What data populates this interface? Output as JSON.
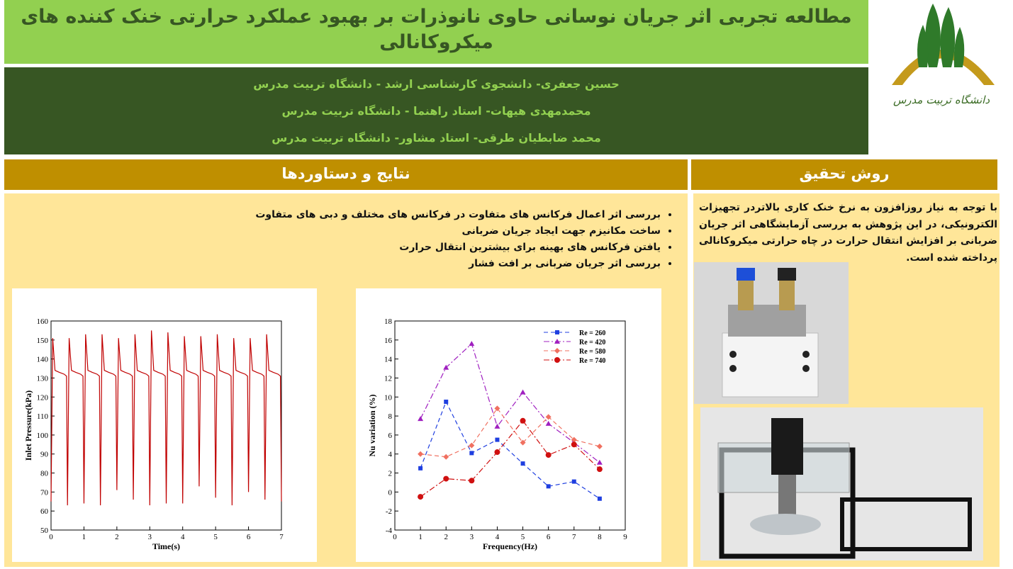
{
  "header": {
    "title": "مطالعه تجربی اثر جریان نوسانی حاوی نانوذرات بر بهبود عملکرد حرارتی خنک کننده های میکروکانالی",
    "authors": [
      "حسین جعفری- دانشجوی کارشناسی ارشد - دانشگاه تربیت مدرس",
      "محمدمهدی هیهات- استاد راهنما - دانشگاه تربیت مدرس",
      "محمد ضابطیان طرقی- استاد مشاور- دانشگاه تربیت مدرس"
    ]
  },
  "logo": {
    "text": "دانشگاه تربیت مدرس"
  },
  "sections": {
    "results": {
      "heading": "نتایج و دستاوردها",
      "bullets": [
        "بررسی اثر اعمال فرکانس های متفاوت در فرکانس های مختلف و دبی های متفاوت",
        "ساخت مکانیزم جهت ایجاد جریان ضربانی",
        "یافتن فرکانس های بهینه برای بیشترین انتقال حرارت",
        "بررسی اثر جریان ضربانی بر افت فشار"
      ]
    },
    "method": {
      "heading": "روش تحقیق",
      "text": "با توجه به نیاز روزافزون به نرخ خنک کاری بالاتردر تجهیزات الکترونیکی، در این پژوهش به بررسی آزمایشگاهی اثر جریان ضربانی بر افزایش انتقال حرارت در چاه حرارتی میکروکانالی پرداخته شده است."
    }
  },
  "chart_data": [
    {
      "type": "line",
      "x_label": "Time(s)",
      "y_label": "Inlet Pressure(kPa)",
      "color": "#c00000",
      "x": [
        0,
        0.05,
        0.12,
        0.25,
        0.4,
        0.47,
        0.5,
        0.55,
        0.62,
        0.75,
        0.9,
        0.97,
        1,
        1.05,
        1.12,
        1.25,
        1.4,
        1.47,
        1.5,
        1.55,
        1.62,
        1.75,
        1.9,
        1.97,
        2,
        2.05,
        2.12,
        2.25,
        2.4,
        2.47,
        2.5,
        2.55,
        2.62,
        2.75,
        2.9,
        2.97,
        3,
        3.05,
        3.12,
        3.25,
        3.4,
        3.47,
        3.5,
        3.55,
        3.62,
        3.75,
        3.9,
        3.97,
        4,
        4.05,
        4.12,
        4.25,
        4.4,
        4.47,
        4.5,
        4.55,
        4.62,
        4.75,
        4.9,
        4.97,
        5,
        5.05,
        5.12,
        5.25,
        5.4,
        5.47,
        5.5,
        5.55,
        5.62,
        5.75,
        5.9,
        5.97,
        6,
        6.05,
        6.12,
        6.25,
        6.4,
        6.47,
        6.5,
        6.55,
        6.62,
        6.75,
        6.9,
        6.97,
        7
      ],
      "values": [
        65,
        151,
        134,
        133,
        132,
        131,
        63,
        151,
        134,
        133,
        132,
        131,
        64,
        153,
        134,
        133,
        132,
        131,
        63,
        153,
        134,
        133,
        132,
        131,
        71,
        151,
        134,
        133,
        132,
        131,
        66,
        153,
        134,
        133,
        132,
        131,
        63,
        155,
        134,
        133,
        132,
        131,
        64,
        154,
        134,
        133,
        132,
        131,
        64,
        152,
        134,
        133,
        132,
        131,
        73,
        152,
        134,
        133,
        132,
        131,
        67,
        153,
        134,
        133,
        132,
        131,
        63,
        151,
        134,
        133,
        132,
        131,
        70,
        151,
        134,
        133,
        132,
        131,
        66,
        153,
        134,
        133,
        132,
        131,
        65
      ],
      "xlim": [
        0,
        7
      ],
      "ylim": [
        50,
        160
      ],
      "xticks": [
        0,
        1,
        2,
        3,
        4,
        5,
        6,
        7
      ],
      "yticks": [
        50,
        60,
        70,
        80,
        90,
        100,
        110,
        120,
        130,
        140,
        150,
        160
      ]
    },
    {
      "type": "line",
      "x_label": "Frequency(Hz)",
      "y_label": "Nu variation (%)",
      "legend": "upper right",
      "x": [
        1,
        2,
        3,
        4,
        5,
        6,
        7,
        8
      ],
      "series": [
        {
          "name": "Re = 260",
          "color": "#1f3fe0",
          "marker": "square",
          "linestyle": "dashed",
          "values": [
            2.5,
            9.5,
            4.1,
            5.5,
            3.0,
            0.6,
            1.1,
            -0.7
          ]
        },
        {
          "name": "Re = 420",
          "color": "#a020c0",
          "marker": "triangle",
          "linestyle": "dashdot",
          "values": [
            7.7,
            13.1,
            15.6,
            6.9,
            10.5,
            7.2,
            5.2,
            3.1
          ]
        },
        {
          "name": "Re = 580",
          "color": "#f07060",
          "marker": "diamond",
          "linestyle": "dashed",
          "values": [
            4.0,
            3.7,
            4.9,
            8.8,
            5.2,
            7.9,
            5.5,
            4.8
          ]
        },
        {
          "name": "Re = 740",
          "color": "#d01010",
          "marker": "circle",
          "linestyle": "dashdot",
          "values": [
            -0.5,
            1.4,
            1.2,
            4.2,
            7.5,
            3.9,
            5.0,
            2.4
          ]
        }
      ],
      "xlim": [
        0,
        9
      ],
      "ylim": [
        -4,
        18
      ],
      "xticks": [
        0,
        1,
        2,
        3,
        4,
        5,
        6,
        7,
        8,
        9
      ],
      "yticks": [
        -4,
        -2,
        0,
        2,
        4,
        6,
        8,
        10,
        12,
        14,
        16,
        18
      ]
    }
  ]
}
